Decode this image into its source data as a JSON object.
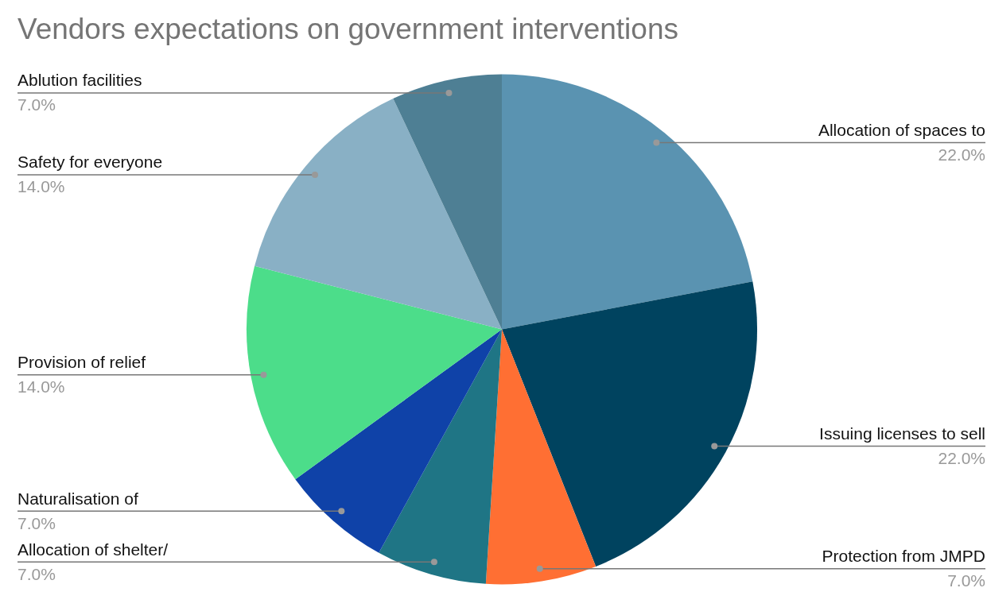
{
  "chart_data": {
    "type": "pie",
    "title": "Vendors expectations on government interventions",
    "categories": [
      "Allocation of spaces to",
      "Issuing licenses to sell",
      "Protection from JMPD",
      "Allocation of shelter/",
      "Naturalisation of",
      "Provision of relief",
      "Safety for everyone",
      "Ablution facilities"
    ],
    "values": [
      22,
      22,
      7,
      7,
      7,
      14,
      14,
      7
    ],
    "colors": [
      "#5a93b1",
      "#00435f",
      "#ff6f33",
      "#1f7585",
      "#0f42a8",
      "#4cdd8a",
      "#89b0c5",
      "#4e7f94"
    ],
    "value_labels": [
      "22.0%",
      "22.0%",
      "7.0%",
      "7.0%",
      "7.0%",
      "14.0%",
      "14.0%",
      "7.0%"
    ],
    "legend": false
  }
}
